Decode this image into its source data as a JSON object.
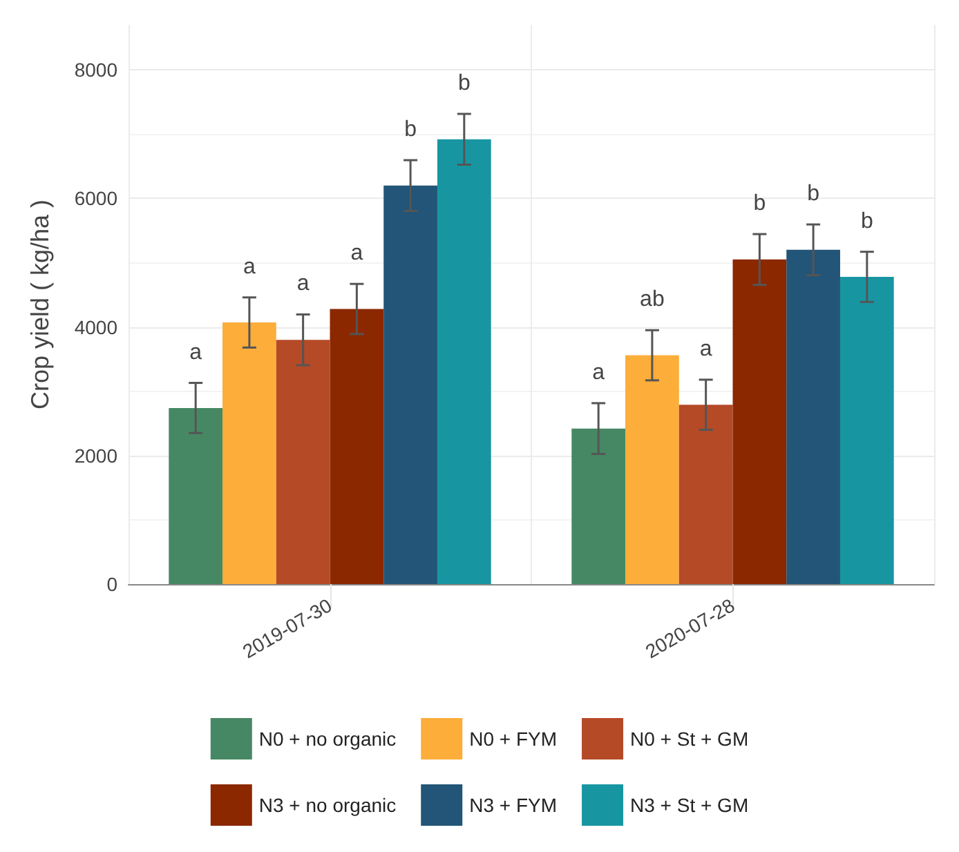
{
  "chart_data": {
    "type": "bar",
    "ylabel": "Crop yield ( kg/ha )",
    "categories": [
      "2019-07-30",
      "2020-07-28"
    ],
    "ylim": [
      0,
      8700
    ],
    "yticks": [
      0,
      2000,
      4000,
      6000,
      8000
    ],
    "grid": true,
    "legend": "bottom",
    "series": [
      {
        "name": "N0 + no organic",
        "color": "#468864",
        "values": [
          2740,
          2420
        ],
        "errors": [
          390,
          395
        ],
        "value_labels": [
          "a",
          "a"
        ]
      },
      {
        "name": "N0 + FYM",
        "color": "#fcad3a",
        "values": [
          4070,
          3560
        ],
        "errors": [
          390,
          390
        ],
        "value_labels": [
          "a",
          "ab"
        ]
      },
      {
        "name": "N0 + St + GM",
        "color": "#b54a27",
        "values": [
          3800,
          2790
        ],
        "errors": [
          395,
          390
        ],
        "value_labels": [
          "a",
          "a"
        ]
      },
      {
        "name": "N3 + no organic",
        "color": "#8c2800",
        "values": [
          4280,
          5050
        ],
        "errors": [
          390,
          395
        ],
        "value_labels": [
          "a",
          "b"
        ]
      },
      {
        "name": "N3 + FYM",
        "color": "#225577",
        "values": [
          6200,
          5200
        ],
        "errors": [
          395,
          395
        ],
        "value_labels": [
          "b",
          "b"
        ]
      },
      {
        "name": "N3 + St + GM",
        "color": "#1796a2",
        "values": [
          6920,
          4780
        ],
        "errors": [
          395,
          390
        ],
        "value_labels": [
          "b",
          "b"
        ]
      }
    ]
  }
}
